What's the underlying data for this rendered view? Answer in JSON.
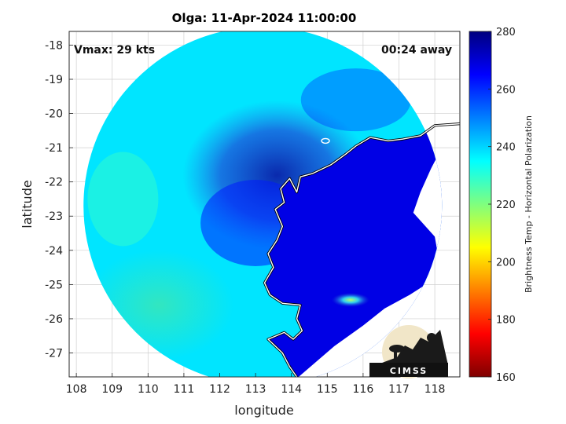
{
  "title": "Olga: 11-Apr-2024 11:00:00",
  "vmax_label": "Vmax: 29 kts",
  "time_away_label": "00:24 away",
  "logo_text": "CIMSS",
  "chart_data": {
    "type": "heatmap",
    "title": "Olga: 11-Apr-2024 11:00:00",
    "xlabel": "longitude",
    "ylabel": "latitude",
    "xlim": [
      107.8,
      118.7
    ],
    "ylim": [
      -27.7,
      -17.6
    ],
    "xticks": [
      108,
      109,
      110,
      111,
      112,
      113,
      114,
      115,
      116,
      117,
      118
    ],
    "yticks": [
      -18,
      -19,
      -20,
      -21,
      -22,
      -23,
      -24,
      -25,
      -26,
      -27
    ],
    "grid": true,
    "colorbar": {
      "label": "Brightness Temp - Horizontal Polarization",
      "range": [
        160,
        280
      ],
      "ticks": [
        160,
        180,
        200,
        220,
        240,
        260,
        280
      ],
      "colormap": [
        "#7f0000",
        "#ff0000",
        "#ff7f00",
        "#ffff00",
        "#7fff7f",
        "#00ffff",
        "#007fff",
        "#0000ff",
        "#00007f"
      ]
    },
    "swath_center": [
      113.2,
      -22.7
    ],
    "swath_radius_deg": 5.0,
    "coast_points": [
      [
        118.7,
        -20.3
      ],
      [
        118.0,
        -20.35
      ],
      [
        117.6,
        -20.65
      ],
      [
        117.1,
        -20.75
      ],
      [
        116.7,
        -20.8
      ],
      [
        116.2,
        -20.7
      ],
      [
        115.8,
        -20.95
      ],
      [
        115.5,
        -21.2
      ],
      [
        115.1,
        -21.5
      ],
      [
        114.6,
        -21.75
      ],
      [
        114.25,
        -21.85
      ],
      [
        114.15,
        -22.3
      ],
      [
        113.95,
        -21.9
      ],
      [
        113.7,
        -22.2
      ],
      [
        113.8,
        -22.6
      ],
      [
        113.55,
        -22.8
      ],
      [
        113.75,
        -23.3
      ],
      [
        113.6,
        -23.7
      ],
      [
        113.35,
        -24.1
      ],
      [
        113.5,
        -24.5
      ],
      [
        113.25,
        -24.95
      ],
      [
        113.4,
        -25.3
      ],
      [
        113.75,
        -25.55
      ],
      [
        114.25,
        -25.6
      ],
      [
        114.15,
        -26.0
      ],
      [
        114.3,
        -26.35
      ],
      [
        114.05,
        -26.6
      ],
      [
        113.8,
        -26.4
      ],
      [
        113.35,
        -26.6
      ],
      [
        113.75,
        -27.0
      ],
      [
        113.95,
        -27.4
      ],
      [
        114.15,
        -27.7
      ]
    ],
    "bands": [
      {
        "name": "warm-land",
        "value": 268
      },
      {
        "name": "deep-convection",
        "value": 262
      },
      {
        "name": "ocean",
        "value": 238
      },
      {
        "name": "warm-ocean",
        "value": 228
      },
      {
        "name": "lake-spot",
        "value": 232
      }
    ]
  }
}
